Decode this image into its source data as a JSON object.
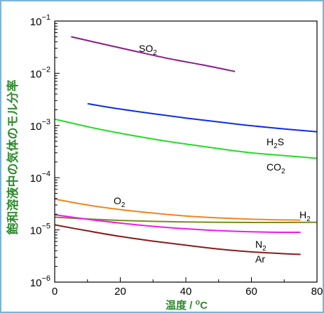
{
  "chart_data": {
    "type": "line",
    "x_axis_label": "温度 / °C",
    "x_axis_label_parts": {
      "main": "温度",
      "sep": " / ",
      "deg": "o",
      "unit": "C"
    },
    "y_axis_label": "飽和溶液中の気体のモル分率",
    "xlim": [
      0,
      80
    ],
    "ylim": [
      1e-06,
      0.1
    ],
    "y_scale": "log",
    "x_ticks": [
      0,
      20,
      40,
      60,
      80
    ],
    "y_ticks": [
      {
        "value": 1e-06,
        "base": "10",
        "exp": "−6"
      },
      {
        "value": 1e-05,
        "base": "10",
        "exp": "−5"
      },
      {
        "value": 0.0001,
        "base": "10",
        "exp": "−4"
      },
      {
        "value": 0.001,
        "base": "10",
        "exp": "−3"
      },
      {
        "value": 0.01,
        "base": "10",
        "exp": "−2"
      },
      {
        "value": 0.1,
        "base": "10",
        "exp": "−1"
      }
    ],
    "grid": false,
    "series": [
      {
        "name": "SO2",
        "label_main": "SO",
        "label_sub": "2",
        "color": "#8b1a8b",
        "x": [
          5,
          15,
          25,
          35,
          45,
          55
        ],
        "y": [
          0.05,
          0.036,
          0.026,
          0.019,
          0.0145,
          0.0108
        ]
      },
      {
        "name": "H2S",
        "label_main": "H",
        "label_sub": "2",
        "label_tail": "S",
        "color": "#0a2ee6",
        "x": [
          10,
          20,
          30,
          40,
          50,
          60,
          70,
          80
        ],
        "y": [
          0.00262,
          0.00206,
          0.00168,
          0.00139,
          0.00117,
          0.00099,
          0.00086,
          0.00076
        ]
      },
      {
        "name": "CO2",
        "label_main": "CO",
        "label_sub": "2",
        "color": "#22dd22",
        "x": [
          0,
          10,
          20,
          30,
          40,
          50,
          60,
          70,
          80
        ],
        "y": [
          0.00132,
          0.00095,
          0.00071,
          0.00055,
          0.00044,
          0.00036,
          0.0003,
          0.000265,
          0.000235
        ]
      },
      {
        "name": "O2",
        "label_main": "O",
        "label_sub": "2",
        "color": "#f0861a",
        "x": [
          0,
          10,
          20,
          30,
          40,
          50,
          60,
          70,
          75
        ],
        "y": [
          3.9e-05,
          3e-05,
          2.45e-05,
          2.1e-05,
          1.85e-05,
          1.7e-05,
          1.6e-05,
          1.55e-05,
          1.54e-05
        ]
      },
      {
        "name": "H2",
        "label_main": "H",
        "label_sub": "2",
        "color": "#7a8c1a",
        "x": [
          0,
          10,
          20,
          30,
          40,
          50,
          60,
          70,
          80
        ],
        "y": [
          1.75e-05,
          1.62e-05,
          1.52e-05,
          1.46e-05,
          1.42e-05,
          1.4e-05,
          1.39e-05,
          1.39e-05,
          1.4e-05
        ]
      },
      {
        "name": "N2",
        "label_main": "N",
        "label_sub": "2",
        "color": "#ee1aee",
        "x": [
          0,
          10,
          20,
          30,
          40,
          50,
          60,
          70,
          75
        ],
        "y": [
          1.95e-05,
          1.6e-05,
          1.35e-05,
          1.17e-05,
          1.05e-05,
          9.7e-06,
          9.2e-06,
          9e-06,
          9e-06
        ]
      },
      {
        "name": "Ar",
        "label_main": "Ar",
        "label_sub": "",
        "color": "#8b1a1a",
        "x": [
          0,
          10,
          20,
          30,
          40,
          50,
          60,
          70,
          75
        ],
        "y": [
          1.25e-05,
          9.6e-06,
          7.5e-06,
          6.1e-06,
          5.1e-06,
          4.3e-06,
          3.8e-06,
          3.5e-06,
          3.4e-06
        ]
      }
    ]
  }
}
